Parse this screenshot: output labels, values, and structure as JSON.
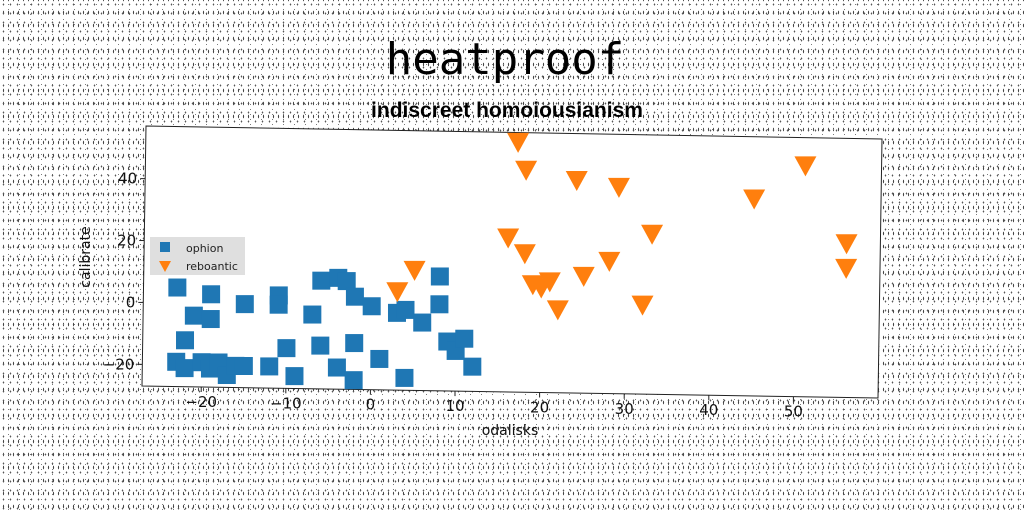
{
  "chart_data": {
    "type": "scatter",
    "title": "heatproof",
    "subtitle": "indiscreet homoiousianism",
    "xlabel": "odalisks",
    "ylabel": "calibrate",
    "xlim": [
      -27,
      60
    ],
    "ylim": [
      -27,
      57
    ],
    "xticks": [
      -20,
      -10,
      0,
      10,
      20,
      30,
      40,
      50
    ],
    "yticks": [
      -20,
      0,
      20,
      40
    ],
    "grid": false,
    "legend_position": "center-left",
    "series": [
      {
        "name": "ophion",
        "marker": "square",
        "color": "#1f77b4",
        "points": [
          [
            -23,
            5
          ],
          [
            -21,
            -4
          ],
          [
            -19,
            -5
          ],
          [
            -19,
            3
          ],
          [
            -15,
            0
          ],
          [
            -11,
            3
          ],
          [
            -11,
            0
          ],
          [
            -7,
            -3
          ],
          [
            -6,
            8
          ],
          [
            -4,
            9
          ],
          [
            -3,
            8
          ],
          [
            -2,
            3
          ],
          [
            0,
            0
          ],
          [
            3,
            -2
          ],
          [
            4,
            -1
          ],
          [
            6,
            -5
          ],
          [
            8,
            10
          ],
          [
            8,
            1
          ],
          [
            -22,
            -12
          ],
          [
            -23,
            -19
          ],
          [
            -22,
            -21
          ],
          [
            -20,
            -19
          ],
          [
            -19,
            -21
          ],
          [
            -18,
            -19
          ],
          [
            -17,
            -23
          ],
          [
            -16,
            -20
          ],
          [
            -15,
            -20
          ],
          [
            -12,
            -20
          ],
          [
            -10,
            -14
          ],
          [
            -9,
            -23
          ],
          [
            -6,
            -13
          ],
          [
            -4,
            -20
          ],
          [
            -2,
            -12
          ],
          [
            -2,
            -24
          ],
          [
            1,
            -17
          ],
          [
            4,
            -23
          ],
          [
            9,
            -11
          ],
          [
            10,
            -14
          ],
          [
            11,
            -10
          ],
          [
            12,
            -19
          ]
        ]
      },
      {
        "name": "reboantic",
        "marker": "triangle-down",
        "color": "#ff7f0e",
        "points": [
          [
            17,
            54
          ],
          [
            18,
            45
          ],
          [
            24,
            42
          ],
          [
            29,
            40
          ],
          [
            45,
            37
          ],
          [
            51,
            48
          ],
          [
            16,
            23
          ],
          [
            18,
            18
          ],
          [
            33,
            25
          ],
          [
            56,
            23
          ],
          [
            56,
            15
          ],
          [
            28,
            16
          ],
          [
            25,
            11
          ],
          [
            21,
            9
          ],
          [
            19,
            8
          ],
          [
            20,
            7
          ],
          [
            22,
            0
          ],
          [
            32,
            2
          ],
          [
            5,
            12
          ],
          [
            3,
            5
          ]
        ]
      }
    ]
  }
}
